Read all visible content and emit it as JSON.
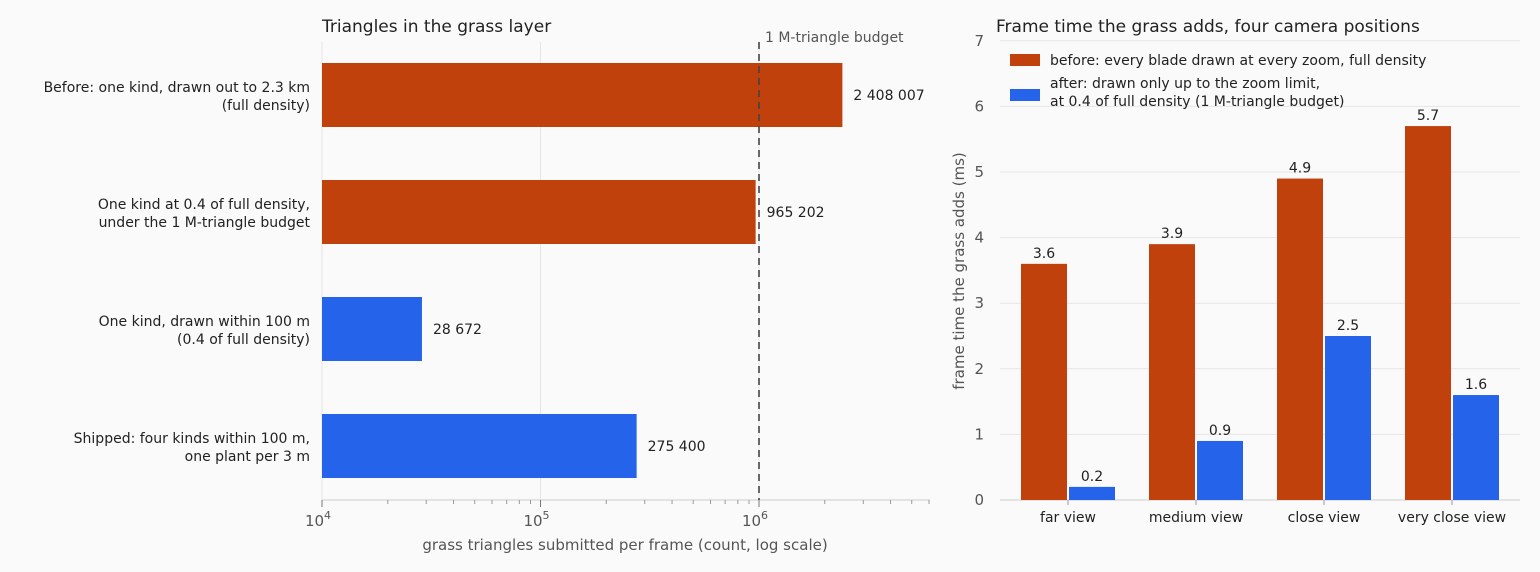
{
  "chart_data": [
    {
      "type": "bar",
      "orientation": "horizontal",
      "title": "Triangles in the grass layer",
      "xlabel": "grass triangles submitted per frame (count, log scale)",
      "xscale": "log",
      "xlim": [
        10000,
        6500000
      ],
      "xticks": [
        {
          "value": 10000,
          "base": "10",
          "exp": "4"
        },
        {
          "value": 100000,
          "base": "10",
          "exp": "5"
        },
        {
          "value": 1000000,
          "base": "10",
          "exp": "6"
        }
      ],
      "categories": [
        [
          "Before: one kind, drawn out to 2.3 km",
          "(full density)"
        ],
        [
          "One kind at 0.4 of full density,",
          "under the 1 M-triangle budget"
        ],
        [
          "One kind, drawn within 100 m",
          "(0.4 of full density)"
        ],
        [
          "Shipped: four kinds within 100 m,",
          "one plant per 3 m"
        ]
      ],
      "values": [
        2408007,
        965202,
        28672,
        275400
      ],
      "value_labels": [
        "2 408 007",
        "965 202",
        "28 672",
        "275 400"
      ],
      "bar_colors": [
        "#c0410c",
        "#c0410c",
        "#2563eb",
        "#2563eb"
      ],
      "reference_line": {
        "value": 1000000,
        "label": "1 M-triangle budget"
      },
      "grid": true
    },
    {
      "type": "bar",
      "title": "Frame time the grass adds, four camera positions",
      "ylabel": "frame time the grass adds (ms)",
      "ylim": [
        0,
        7
      ],
      "yticks": [
        "0",
        "1",
        "2",
        "3",
        "4",
        "5",
        "6",
        "7"
      ],
      "categories": [
        "far view",
        "medium view",
        "close view",
        "very close view"
      ],
      "series": [
        {
          "name": "before: every blade drawn at every zoom, full density",
          "color": "#c0410c",
          "values": [
            3.6,
            3.9,
            4.9,
            5.7
          ],
          "labels": [
            "3.6",
            "3.9",
            "4.9",
            "5.7"
          ]
        },
        {
          "name_lines": [
            "after: drawn only up to the zoom limit,",
            "at 0.4 of full density (1 M-triangle budget)"
          ],
          "color": "#2563eb",
          "values": [
            0.2,
            0.9,
            2.5,
            1.6
          ],
          "labels": [
            "0.2",
            "0.9",
            "2.5",
            "1.6"
          ]
        }
      ],
      "legend": "top-left",
      "grid": true
    }
  ]
}
